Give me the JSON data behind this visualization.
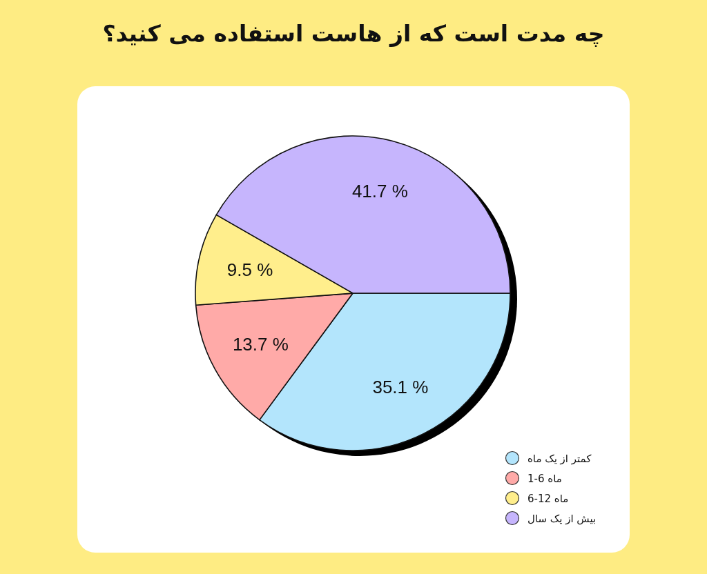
{
  "chart_data": {
    "type": "pie",
    "title": "چه مدت است که از هاست استفاده می کنید؟",
    "categories": [
      "کمتر از یک ماه",
      "1-6 ماه",
      "6-12 ماه",
      "بیش از یک سال"
    ],
    "values": [
      35.1,
      13.7,
      9.5,
      41.7
    ],
    "colors": [
      "#b3e5fc",
      "#ffaaa8",
      "#ffee8c",
      "#c6b5fd"
    ],
    "value_labels": [
      "35.1 %",
      "13.7 %",
      "9.5 %",
      "41.7 %"
    ],
    "legend": "bottom right"
  }
}
